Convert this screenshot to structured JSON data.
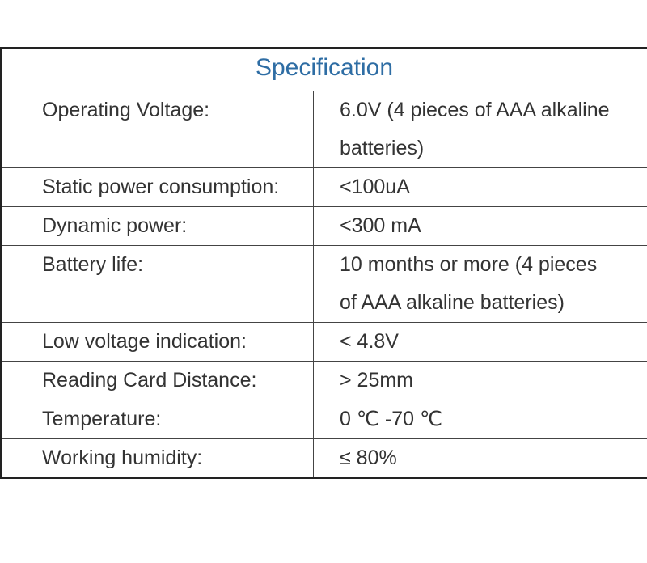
{
  "table": {
    "title": "Specification",
    "rows": [
      [
        "Operating Voltage:",
        "6.0V (4 pieces of AAA alkaline batteries)"
      ],
      [
        "Static power consumption:",
        "<100uA"
      ],
      [
        "Dynamic power:",
        "<300 mA"
      ],
      [
        "Battery life:",
        "10 months or more (4 pieces of AAA alkaline batteries)"
      ],
      [
        "Low voltage indication:",
        "< 4.8V"
      ],
      [
        "Reading Card Distance:",
        "> 25mm"
      ],
      [
        "Temperature:",
        "0 ℃ -70 ℃"
      ],
      [
        "Working humidity:",
        "≤ 80%"
      ]
    ]
  }
}
